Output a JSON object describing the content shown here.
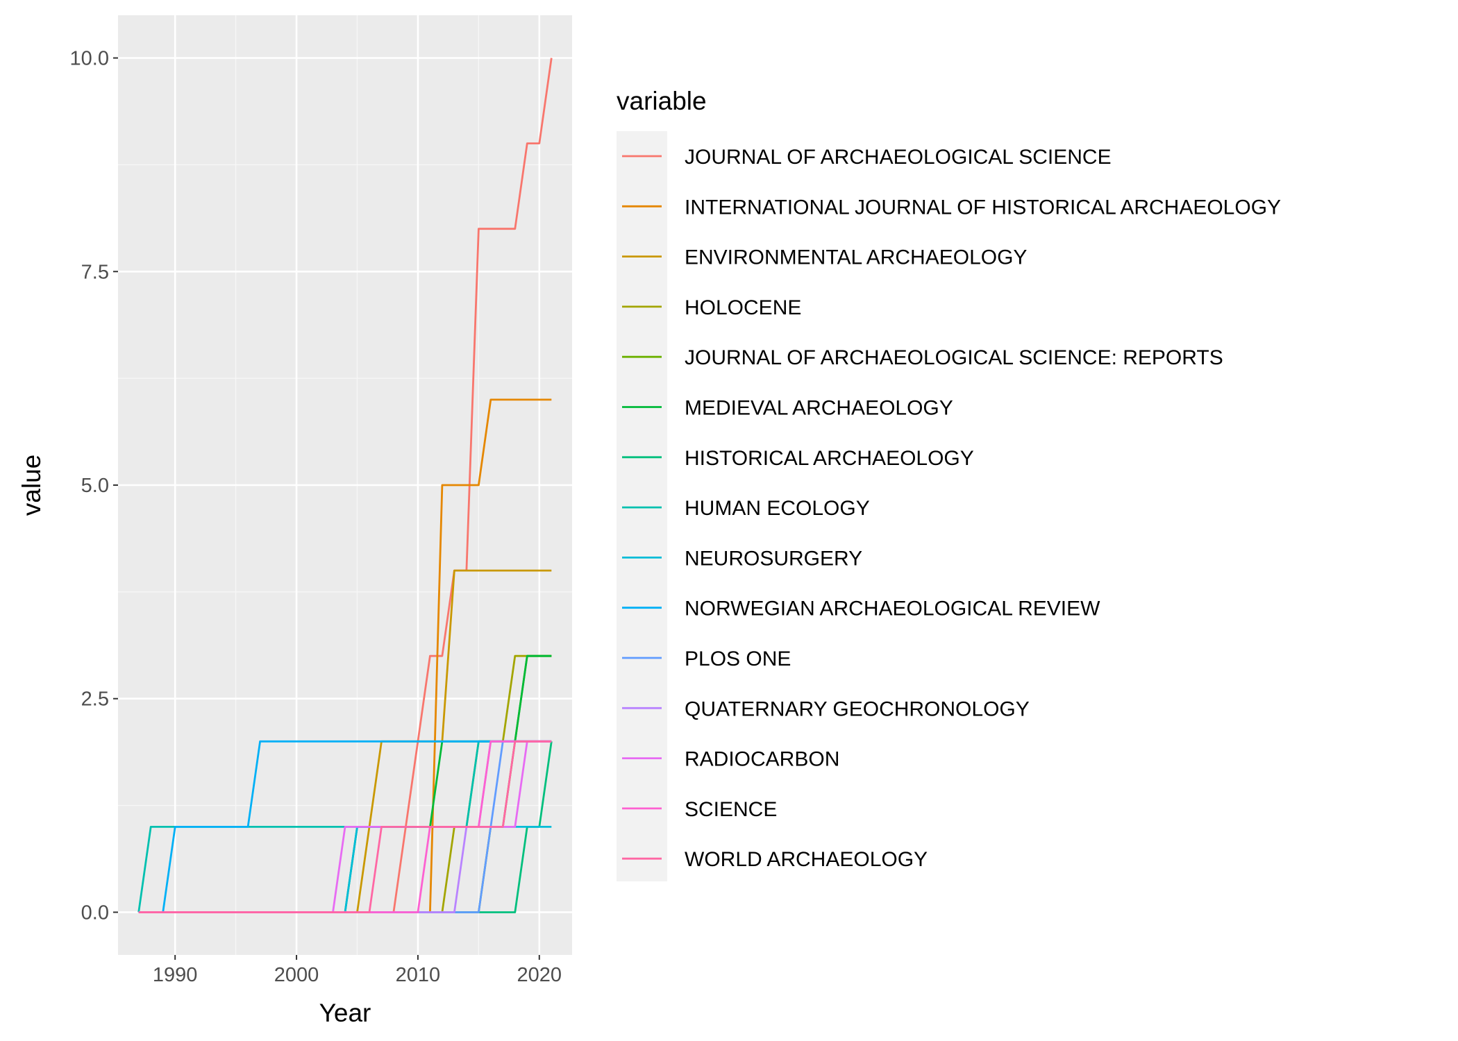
{
  "chart_data": {
    "type": "line",
    "xlabel": "Year",
    "ylabel": "value",
    "xlim": [
      1985.3,
      2022.7
    ],
    "ylim": [
      -0.5,
      10.5
    ],
    "xticks": [
      1990,
      2000,
      2010,
      2020
    ],
    "xtick_labels": [
      "1990",
      "2000",
      "2010",
      "2020"
    ],
    "yticks": [
      0,
      2.5,
      5,
      7.5,
      10
    ],
    "ytick_labels": [
      "0.0",
      "2.5",
      "5.0",
      "7.5",
      "10.0"
    ],
    "grid": true,
    "legend_position": "right",
    "legend_title": "variable",
    "x": [
      1987,
      1988,
      1989,
      1990,
      1991,
      1992,
      1993,
      1994,
      1995,
      1996,
      1997,
      1998,
      1999,
      2000,
      2001,
      2002,
      2003,
      2004,
      2005,
      2006,
      2007,
      2008,
      2009,
      2010,
      2011,
      2012,
      2013,
      2014,
      2015,
      2016,
      2017,
      2018,
      2019,
      2020,
      2021
    ],
    "series": [
      {
        "name": "JOURNAL OF ARCHAEOLOGICAL SCIENCE",
        "color": "#F8766D",
        "values": [
          0,
          0,
          0,
          0,
          0,
          0,
          0,
          0,
          0,
          0,
          0,
          0,
          0,
          0,
          0,
          0,
          0,
          0,
          0,
          0,
          0,
          0,
          1,
          2,
          3,
          3,
          4,
          4,
          8,
          8,
          8,
          8,
          9,
          9,
          10
        ]
      },
      {
        "name": "INTERNATIONAL JOURNAL OF HISTORICAL ARCHAEOLOGY",
        "color": "#E58700",
        "values": [
          0,
          0,
          0,
          0,
          0,
          0,
          0,
          0,
          0,
          0,
          0,
          0,
          0,
          0,
          0,
          0,
          0,
          0,
          0,
          0,
          0,
          0,
          0,
          0,
          0,
          5,
          5,
          5,
          5,
          6,
          6,
          6,
          6,
          6,
          6
        ]
      },
      {
        "name": "ENVIRONMENTAL ARCHAEOLOGY",
        "color": "#C99800",
        "values": [
          0,
          0,
          0,
          0,
          0,
          0,
          0,
          0,
          0,
          0,
          0,
          0,
          0,
          0,
          0,
          0,
          0,
          0,
          0,
          1,
          2,
          2,
          2,
          2,
          2,
          2,
          4,
          4,
          4,
          4,
          4,
          4,
          4,
          4,
          4
        ]
      },
      {
        "name": "HOLOCENE",
        "color": "#A3A500",
        "values": [
          0,
          0,
          0,
          0,
          0,
          0,
          0,
          0,
          0,
          0,
          0,
          0,
          0,
          0,
          0,
          0,
          0,
          0,
          0,
          0,
          0,
          0,
          0,
          0,
          0,
          0,
          1,
          1,
          2,
          2,
          2,
          3,
          3,
          3,
          3
        ]
      },
      {
        "name": "JOURNAL OF ARCHAEOLOGICAL SCIENCE: REPORTS",
        "color": "#6BB100",
        "values": [
          0,
          0,
          0,
          0,
          0,
          0,
          0,
          0,
          0,
          0,
          0,
          0,
          0,
          0,
          0,
          0,
          0,
          0,
          0,
          0,
          0,
          0,
          0,
          0,
          0,
          0,
          0,
          0,
          0,
          1,
          1,
          2,
          3,
          3,
          3
        ]
      },
      {
        "name": "MEDIEVAL ARCHAEOLOGY",
        "color": "#00BA38",
        "values": [
          0,
          0,
          0,
          0,
          0,
          0,
          0,
          0,
          0,
          0,
          0,
          0,
          0,
          0,
          0,
          0,
          0,
          0,
          1,
          1,
          1,
          1,
          1,
          1,
          1,
          2,
          2,
          2,
          2,
          2,
          2,
          2,
          3,
          3,
          3
        ]
      },
      {
        "name": "HISTORICAL ARCHAEOLOGY",
        "color": "#00BF7D",
        "values": [
          0,
          0,
          0,
          0,
          0,
          0,
          0,
          0,
          0,
          0,
          0,
          0,
          0,
          0,
          0,
          0,
          0,
          0,
          0,
          0,
          0,
          0,
          0,
          0,
          0,
          0,
          0,
          0,
          0,
          0,
          0,
          0,
          1,
          1,
          2
        ]
      },
      {
        "name": "HUMAN ECOLOGY",
        "color": "#00C0AF",
        "values": [
          0,
          1,
          1,
          1,
          1,
          1,
          1,
          1,
          1,
          1,
          1,
          1,
          1,
          1,
          1,
          1,
          1,
          1,
          1,
          1,
          1,
          1,
          1,
          1,
          1,
          1,
          1,
          1,
          2,
          2,
          2,
          2,
          2,
          2,
          2
        ]
      },
      {
        "name": "NEUROSURGERY",
        "color": "#00BCD8",
        "values": [
          0,
          0,
          0,
          0,
          0,
          0,
          0,
          0,
          0,
          0,
          0,
          0,
          0,
          0,
          0,
          0,
          0,
          0,
          1,
          1,
          1,
          1,
          1,
          1,
          1,
          1,
          1,
          1,
          1,
          1,
          1,
          1,
          1,
          1,
          1
        ]
      },
      {
        "name": "NORWEGIAN ARCHAEOLOGICAL REVIEW",
        "color": "#00B0F6",
        "values": [
          0,
          0,
          0,
          1,
          1,
          1,
          1,
          1,
          1,
          1,
          2,
          2,
          2,
          2,
          2,
          2,
          2,
          2,
          2,
          2,
          2,
          2,
          2,
          2,
          2,
          2,
          2,
          2,
          2,
          2,
          2,
          2,
          2,
          2,
          2
        ]
      },
      {
        "name": "PLOS ONE",
        "color": "#619CFF",
        "values": [
          0,
          0,
          0,
          0,
          0,
          0,
          0,
          0,
          0,
          0,
          0,
          0,
          0,
          0,
          0,
          0,
          0,
          0,
          0,
          0,
          0,
          0,
          0,
          0,
          0,
          0,
          0,
          0,
          0,
          1,
          2,
          2,
          2,
          2,
          2
        ]
      },
      {
        "name": "QUATERNARY GEOCHRONOLOGY",
        "color": "#B983FF",
        "values": [
          0,
          0,
          0,
          0,
          0,
          0,
          0,
          0,
          0,
          0,
          0,
          0,
          0,
          0,
          0,
          0,
          0,
          0,
          0,
          0,
          0,
          0,
          0,
          0,
          0,
          0,
          0,
          1,
          1,
          2,
          2,
          2,
          2,
          2,
          2
        ]
      },
      {
        "name": "RADIOCARBON",
        "color": "#E76BF3",
        "values": [
          0,
          0,
          0,
          0,
          0,
          0,
          0,
          0,
          0,
          0,
          0,
          0,
          0,
          0,
          0,
          0,
          0,
          1,
          1,
          1,
          1,
          1,
          1,
          1,
          1,
          1,
          1,
          1,
          1,
          1,
          1,
          1,
          2,
          2,
          2
        ]
      },
      {
        "name": "SCIENCE",
        "color": "#FD61D1",
        "values": [
          0,
          0,
          0,
          0,
          0,
          0,
          0,
          0,
          0,
          0,
          0,
          0,
          0,
          0,
          0,
          0,
          0,
          0,
          0,
          0,
          0,
          0,
          0,
          0,
          1,
          1,
          1,
          1,
          1,
          2,
          2,
          2,
          2,
          2,
          2
        ]
      },
      {
        "name": "WORLD ARCHAEOLOGY",
        "color": "#FF67A4",
        "values": [
          0,
          0,
          0,
          0,
          0,
          0,
          0,
          0,
          0,
          0,
          0,
          0,
          0,
          0,
          0,
          0,
          0,
          0,
          0,
          0,
          1,
          1,
          1,
          1,
          1,
          1,
          1,
          1,
          1,
          1,
          1,
          2,
          2,
          2,
          2
        ]
      }
    ]
  }
}
